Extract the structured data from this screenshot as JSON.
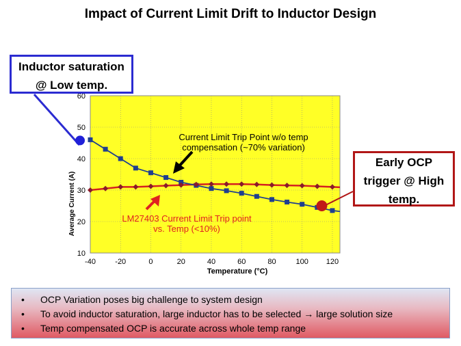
{
  "slide": {
    "title": "Impact of Current Limit Drift to Inductor Design"
  },
  "callouts": {
    "left": {
      "line1": "Inductor saturation",
      "line2": "@ Low temp."
    },
    "right": {
      "line1": "Early OCP",
      "line2": "trigger @ High",
      "line3": "temp."
    }
  },
  "summary": {
    "bullet_glyph": "•",
    "bullets": [
      "OCP Variation poses big challenge to system design",
      "To avoid inductor saturation, large inductor has to be selected → large solution size",
      "Temp compensated OCP is accurate across whole temp range"
    ]
  },
  "colors": {
    "plot_background": "#ffff26",
    "series_uncompensated": "#1f3f8f",
    "series_compensated": "#d42020",
    "marker_compensated": "#8a1a2a",
    "callout_left_border": "#2b2bd1",
    "callout_right_border": "#b11616",
    "dot_left": "#2020d8",
    "dot_right": "#c01818"
  },
  "chart_data": {
    "type": "line",
    "xlabel": "Temperature (°C)",
    "ylabel": "Average Current (A)",
    "xlim": [
      -40,
      125
    ],
    "ylim": [
      10,
      60
    ],
    "xticks": [
      -40,
      -20,
      0,
      20,
      40,
      60,
      80,
      100,
      120
    ],
    "yticks": [
      10,
      20,
      30,
      40,
      50,
      60
    ],
    "grid": true,
    "series": [
      {
        "name": "Current Limit Trip Point w/o temp compensation (~70% variation)",
        "x": [
          -40,
          -30,
          -20,
          -10,
          0,
          10,
          20,
          30,
          40,
          50,
          60,
          70,
          80,
          90,
          100,
          110,
          120,
          125
        ],
        "values": [
          46,
          43,
          40,
          37,
          35.5,
          34,
          32.5,
          31.5,
          30.5,
          29.8,
          29,
          28,
          27,
          26.2,
          25.5,
          24.5,
          23.5,
          23.2
        ]
      },
      {
        "name": "LM27403 Current Limit Trip point vs. Temp (<10%)",
        "x": [
          -40,
          -30,
          -20,
          -10,
          0,
          10,
          20,
          30,
          40,
          50,
          60,
          70,
          80,
          90,
          100,
          110,
          120,
          125
        ],
        "values": [
          30,
          30.5,
          31,
          31,
          31.2,
          31.4,
          31.6,
          31.8,
          31.9,
          31.9,
          31.9,
          31.8,
          31.6,
          31.5,
          31.4,
          31.2,
          31,
          30.9
        ]
      }
    ],
    "annotations": {
      "uncompensated_line1": "Current Limit Trip Point w/o temp",
      "uncompensated_line2": "compensation (~70% variation)",
      "compensated_line1": "LM27403 Current Limit Trip point",
      "compensated_line2": "vs. Temp (<10%)"
    },
    "highlight_points": [
      {
        "name": "inductor-saturation-point",
        "x": -40,
        "y": 46
      },
      {
        "name": "early-ocp-point",
        "x": 113,
        "y": 25
      }
    ]
  }
}
